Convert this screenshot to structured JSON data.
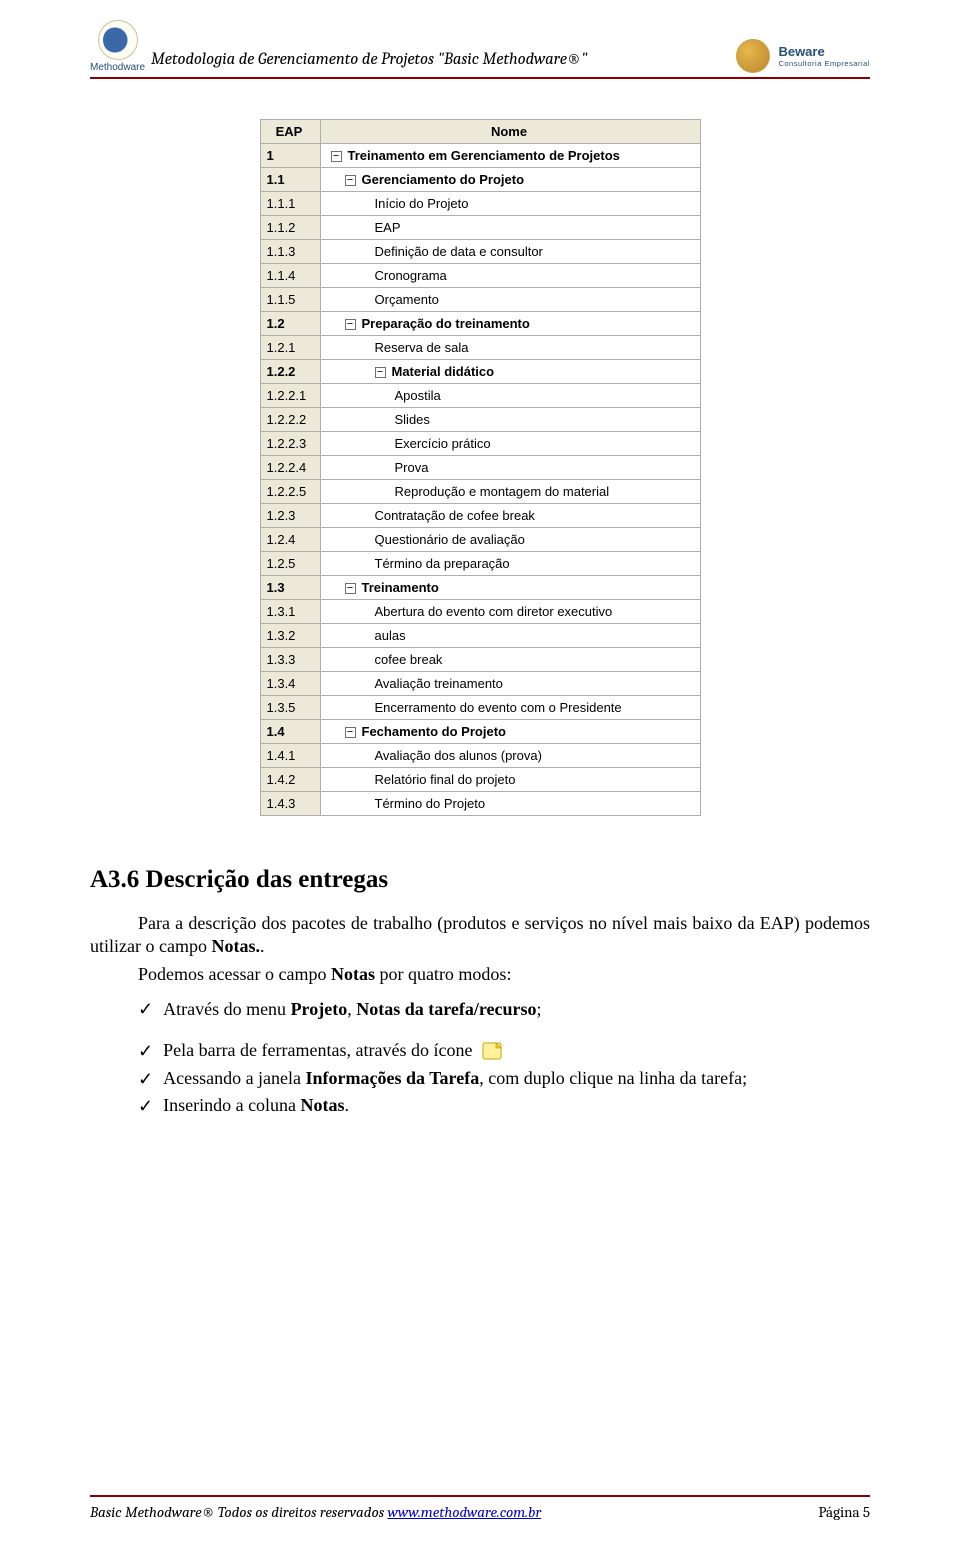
{
  "header": {
    "logo_label": "Methodware",
    "doc_title": "Metodologia de Gerenciamento de Projetos \"Basic Methodware®\"",
    "right_name": "Beware",
    "right_sub": "Consultoria Empresarial"
  },
  "eap_table": {
    "columns": [
      "EAP",
      "Nome"
    ],
    "rows": [
      {
        "id": "1",
        "name": "Treinamento em Gerenciamento de Projetos",
        "indent": 0,
        "bold": true,
        "toggle": true
      },
      {
        "id": "1.1",
        "name": "Gerenciamento do Projeto",
        "indent": 1,
        "bold": true,
        "toggle": true
      },
      {
        "id": "1.1.1",
        "name": "Início do Projeto",
        "indent": 2,
        "bold": false,
        "toggle": false
      },
      {
        "id": "1.1.2",
        "name": "EAP",
        "indent": 2,
        "bold": false,
        "toggle": false
      },
      {
        "id": "1.1.3",
        "name": "Definição de data e consultor",
        "indent": 2,
        "bold": false,
        "toggle": false
      },
      {
        "id": "1.1.4",
        "name": "Cronograma",
        "indent": 2,
        "bold": false,
        "toggle": false
      },
      {
        "id": "1.1.5",
        "name": "Orçamento",
        "indent": 2,
        "bold": false,
        "toggle": false
      },
      {
        "id": "1.2",
        "name": "Preparação do treinamento",
        "indent": 1,
        "bold": true,
        "toggle": true
      },
      {
        "id": "1.2.1",
        "name": "Reserva de sala",
        "indent": 2,
        "bold": false,
        "toggle": false
      },
      {
        "id": "1.2.2",
        "name": "Material didático",
        "indent": 2,
        "bold": true,
        "toggle": true
      },
      {
        "id": "1.2.2.1",
        "name": "Apostila",
        "indent": 3,
        "bold": false,
        "toggle": false
      },
      {
        "id": "1.2.2.2",
        "name": "Slides",
        "indent": 3,
        "bold": false,
        "toggle": false
      },
      {
        "id": "1.2.2.3",
        "name": "Exercício prático",
        "indent": 3,
        "bold": false,
        "toggle": false
      },
      {
        "id": "1.2.2.4",
        "name": "Prova",
        "indent": 3,
        "bold": false,
        "toggle": false
      },
      {
        "id": "1.2.2.5",
        "name": "Reprodução e montagem do material",
        "indent": 3,
        "bold": false,
        "toggle": false
      },
      {
        "id": "1.2.3",
        "name": "Contratação de cofee break",
        "indent": 2,
        "bold": false,
        "toggle": false
      },
      {
        "id": "1.2.4",
        "name": "Questionário de avaliação",
        "indent": 2,
        "bold": false,
        "toggle": false
      },
      {
        "id": "1.2.5",
        "name": "Término da preparação",
        "indent": 2,
        "bold": false,
        "toggle": false
      },
      {
        "id": "1.3",
        "name": "Treinamento",
        "indent": 1,
        "bold": true,
        "toggle": true
      },
      {
        "id": "1.3.1",
        "name": "Abertura do evento com diretor executivo",
        "indent": 2,
        "bold": false,
        "toggle": false
      },
      {
        "id": "1.3.2",
        "name": "aulas",
        "indent": 2,
        "bold": false,
        "toggle": false
      },
      {
        "id": "1.3.3",
        "name": "cofee break",
        "indent": 2,
        "bold": false,
        "toggle": false
      },
      {
        "id": "1.3.4",
        "name": "Avaliação treinamento",
        "indent": 2,
        "bold": false,
        "toggle": false
      },
      {
        "id": "1.3.5",
        "name": "Encerramento do evento com o Presidente",
        "indent": 2,
        "bold": false,
        "toggle": false
      },
      {
        "id": "1.4",
        "name": "Fechamento do Projeto",
        "indent": 1,
        "bold": true,
        "toggle": true
      },
      {
        "id": "1.4.1",
        "name": "Avaliação dos alunos (prova)",
        "indent": 2,
        "bold": false,
        "toggle": false
      },
      {
        "id": "1.4.2",
        "name": "Relatório final do projeto",
        "indent": 2,
        "bold": false,
        "toggle": false
      },
      {
        "id": "1.4.3",
        "name": "Término do Projeto",
        "indent": 2,
        "bold": false,
        "toggle": false
      }
    ],
    "header_bg": "#ece9d8",
    "border_color": "#aeaeae",
    "font_family": "Verdana",
    "font_size_pt": 10
  },
  "section": {
    "heading": "A3.6 Descrição das entregas",
    "para1_pre": "Para a descrição dos pacotes de trabalho (produtos e serviços no nível mais baixo da EAP) podemos utilizar o campo ",
    "para1_b1": "Notas.",
    "para1_post": ".",
    "para2_pre": "Podemos acessar o campo ",
    "para2_b1": "Notas",
    "para2_post": " por quatro modos:",
    "bullets": [
      {
        "pre": "Através do menu ",
        "b1": "Projeto",
        "mid": ", ",
        "b2": "Notas da tarefa/recurso",
        "post": ";",
        "icon": false,
        "gap": true
      },
      {
        "pre": "Pela barra de ferramentas, através do ícone ",
        "b1": "",
        "mid": "",
        "b2": "",
        "post": "",
        "icon": true,
        "gap": false
      },
      {
        "pre": "Acessando a janela ",
        "b1": "Informações da Tarefa",
        "mid": "",
        "b2": "",
        "post": ", com duplo clique na linha da tarefa;",
        "icon": false,
        "gap": false
      },
      {
        "pre": "Inserindo a coluna ",
        "b1": "Notas",
        "mid": "",
        "b2": "",
        "post": ".",
        "icon": false,
        "gap": false
      }
    ]
  },
  "footer": {
    "left_pre": "Basic Methodware® Todos os direitos reservados ",
    "link": "www.methodware.com.br",
    "right": "Página 5"
  },
  "colors": {
    "rule": "#8b0000",
    "link": "#0000cc",
    "header_logo_text": "#1f4e79"
  }
}
